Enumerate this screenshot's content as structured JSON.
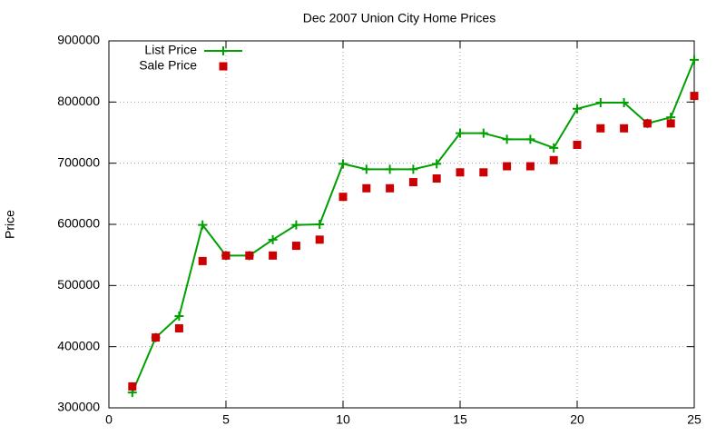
{
  "chart_data": {
    "type": "line",
    "title": "Dec 2007 Union City Home Prices",
    "ylabel": "Price",
    "x": [
      1,
      2,
      3,
      4,
      5,
      6,
      7,
      8,
      9,
      10,
      11,
      12,
      13,
      14,
      15,
      16,
      17,
      18,
      19,
      20,
      21,
      22,
      23,
      24,
      25
    ],
    "series": [
      {
        "name": "List Price",
        "color": "#00a000",
        "mode": "lines+markers",
        "marker": "plus",
        "values": [
          325000,
          415000,
          450000,
          599000,
          549000,
          549000,
          575000,
          599000,
          600000,
          699000,
          690000,
          690000,
          690000,
          699000,
          749000,
          749000,
          739000,
          739000,
          725000,
          789000,
          799000,
          799000,
          765000,
          775000,
          869000
        ]
      },
      {
        "name": "Sale Price",
        "color": "#cc0000",
        "mode": "markers",
        "marker": "square",
        "values": [
          335000,
          415000,
          430000,
          540000,
          549000,
          549000,
          549000,
          565000,
          575000,
          645000,
          659000,
          659000,
          669000,
          675000,
          685000,
          685000,
          695000,
          695000,
          705000,
          730000,
          757000,
          757000,
          765000,
          765000,
          810000
        ]
      }
    ],
    "xlim": [
      0,
      25
    ],
    "xticks": [
      0,
      5,
      10,
      15,
      20,
      25
    ],
    "ylim": [
      300000,
      900000
    ],
    "yticks": [
      300000,
      400000,
      500000,
      600000,
      700000,
      800000,
      900000
    ],
    "grid": true,
    "legend": "top-left"
  }
}
